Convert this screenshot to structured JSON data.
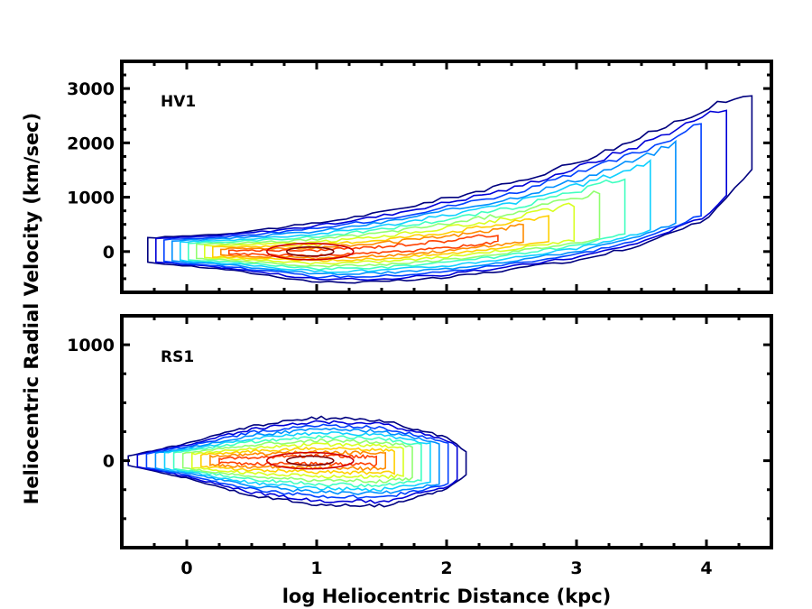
{
  "chart_data": {
    "type": "contour",
    "xlabel": "log Heliocentric Distance (kpc)",
    "ylabel": "Heliocentric Radial Velocity (km/sec)",
    "xlim": [
      -0.5,
      4.5
    ],
    "x_ticks": [
      0,
      1,
      2,
      3,
      4
    ],
    "x_tick_labels": [
      "0",
      "1",
      "2",
      "3",
      "4"
    ],
    "colormap": [
      "#00007f",
      "#0000d8",
      "#0040ff",
      "#0090ff",
      "#10d0ff",
      "#40ffc0",
      "#90ff70",
      "#d8ff20",
      "#ffd000",
      "#ff8c00",
      "#ff4000",
      "#d00000",
      "#7f0000"
    ],
    "panels": [
      {
        "label": "HV1",
        "ylim": [
          -750,
          3500
        ],
        "y_ticks": [
          0,
          1000,
          2000,
          3000
        ],
        "y_tick_labels": [
          "0",
          "1000",
          "2000",
          "3000"
        ],
        "ridge": [
          [
            -0.3,
            0
          ],
          [
            0.3,
            -10
          ],
          [
            1,
            -30
          ],
          [
            1.5,
            30
          ],
          [
            2,
            120
          ],
          [
            2.5,
            260
          ],
          [
            3,
            430
          ],
          [
            3.5,
            700
          ],
          [
            4,
            1200
          ],
          [
            4.35,
            1900
          ]
        ],
        "upper_edge": [
          [
            -0.3,
            250
          ],
          [
            0.3,
            330
          ],
          [
            1,
            520
          ],
          [
            1.5,
            720
          ],
          [
            2,
            980
          ],
          [
            2.5,
            1250
          ],
          [
            3,
            1650
          ],
          [
            3.5,
            2100
          ],
          [
            4,
            2650
          ],
          [
            4.35,
            2900
          ]
        ],
        "lower_edge": [
          [
            -0.3,
            -200
          ],
          [
            0.3,
            -330
          ],
          [
            1,
            -560
          ],
          [
            1.5,
            -560
          ],
          [
            2,
            -480
          ],
          [
            2.5,
            -330
          ],
          [
            3,
            -160
          ],
          [
            3.5,
            120
          ],
          [
            4,
            600
          ],
          [
            4.35,
            1500
          ]
        ],
        "peak": {
          "x": 0.95,
          "y": 0
        }
      },
      {
        "label": "RS1",
        "ylim": [
          -750,
          1250
        ],
        "y_ticks": [
          0,
          1000
        ],
        "y_tick_labels": [
          "0",
          "1000"
        ],
        "ridge": [
          [
            -0.45,
            0
          ],
          [
            0,
            0
          ],
          [
            0.5,
            0
          ],
          [
            1,
            10
          ],
          [
            1.5,
            0
          ],
          [
            2,
            -20
          ],
          [
            2.15,
            -20
          ]
        ],
        "upper_edge": [
          [
            -0.45,
            40
          ],
          [
            0,
            150
          ],
          [
            0.5,
            300
          ],
          [
            1,
            370
          ],
          [
            1.5,
            350
          ],
          [
            2,
            200
          ],
          [
            2.15,
            80
          ]
        ],
        "lower_edge": [
          [
            -0.45,
            -40
          ],
          [
            0,
            -150
          ],
          [
            0.5,
            -300
          ],
          [
            1,
            -380
          ],
          [
            1.5,
            -390
          ],
          [
            2,
            -250
          ],
          [
            2.15,
            -120
          ]
        ],
        "peak": {
          "x": 0.95,
          "y": 0
        }
      }
    ]
  }
}
